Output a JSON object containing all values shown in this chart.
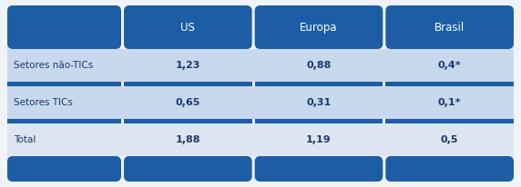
{
  "col_headers": [
    "US",
    "Europa",
    "Brasil"
  ],
  "row_labels": [
    "Setores não-TICs",
    "Setores TICs",
    "Total"
  ],
  "values": [
    [
      "1,23",
      "0,88",
      "0,4*"
    ],
    [
      "0,65",
      "0,31",
      "0,1*"
    ],
    [
      "1,88",
      "1,19",
      "0,5"
    ]
  ],
  "dark_blue": "#1c5da6",
  "row_colors": [
    "#c8d9ed",
    "#c8d9ed",
    "#dde5f0"
  ],
  "separator_color": "#1c5da6",
  "text_dark": "#1a3a6b",
  "text_white": "#ffffff",
  "bg_color": "#f0f4f8",
  "row_label_fontsize": 7.5,
  "value_fontsize": 8,
  "header_fontsize": 8.5,
  "fig_width": 5.72,
  "fig_height": 2.06,
  "dpi": 100
}
